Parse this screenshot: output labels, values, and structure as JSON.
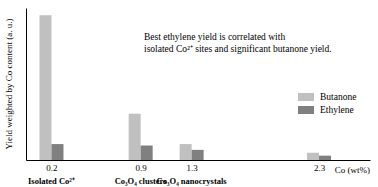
{
  "chart_data": {
    "type": "bar",
    "y_label": "Yield weighted by Co content (a. u.)",
    "x_label": "Co (wt%)",
    "x": [
      0.2,
      0.9,
      1.3,
      2.3
    ],
    "series": [
      {
        "name": "Butanone",
        "color": "#c0c0c0",
        "values": [
          100,
          32,
          11,
          5
        ]
      },
      {
        "name": "Ethylene",
        "color": "#808080",
        "values": [
          11,
          10,
          7,
          3
        ]
      }
    ],
    "xlim": [
      0,
      2.7
    ],
    "xticks": [
      0.2,
      0.9,
      1.3,
      2.3
    ],
    "ylim": [
      0,
      105
    ],
    "tick_labels": "x",
    "legend": "right",
    "annotation": [
      "Best ethylene yield is correlated with",
      "isolated Co²⁺ sites and significant butanone yield."
    ],
    "region_labels": [
      {
        "text": "Isolated Co²⁺",
        "x": 0.2
      },
      {
        "text": "Co₃O₄ clusters",
        "x": 0.9
      },
      {
        "text": "Co₃O₄ nanocrystals",
        "x": 1.3
      }
    ]
  }
}
